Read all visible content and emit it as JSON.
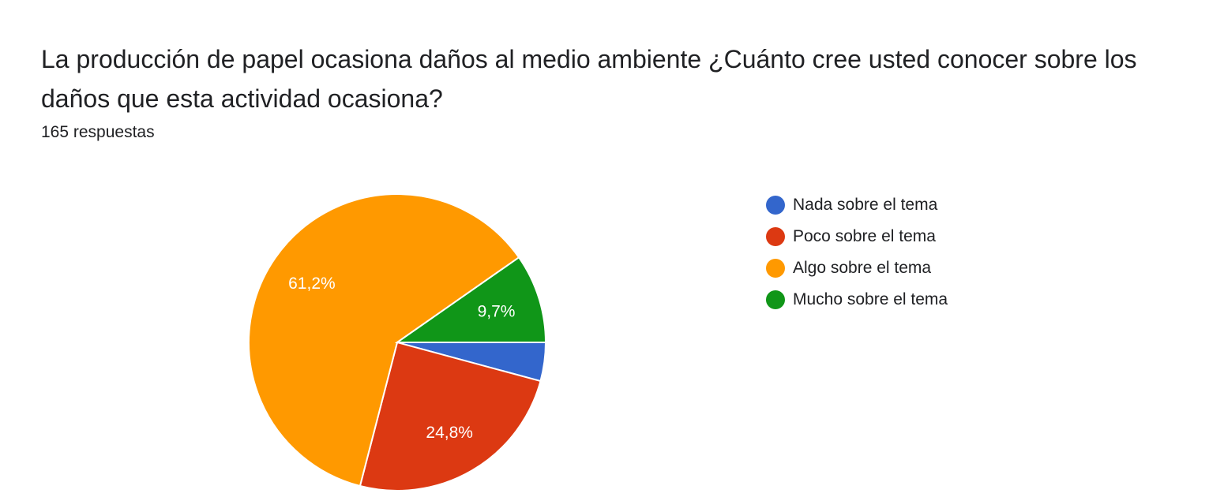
{
  "question": {
    "title": "La producción de papel ocasiona daños al medio ambiente ¿Cuánto cree usted conocer sobre los daños que esta actividad ocasiona?",
    "responses": "165 respuestas"
  },
  "chart_data": {
    "type": "pie",
    "title": "La producción de papel ocasiona daños al medio ambiente ¿Cuánto cree usted conocer sobre los daños que esta actividad ocasiona?",
    "legend_position": "right",
    "slices": [
      {
        "name": "Nada sobre el tema",
        "value": 4.2,
        "label": "",
        "color": "#3366cc"
      },
      {
        "name": "Poco sobre el tema",
        "value": 24.8,
        "label": "24,8%",
        "color": "#dc3912"
      },
      {
        "name": "Algo sobre el tema",
        "value": 61.2,
        "label": "61,2%",
        "color": "#ff9900"
      },
      {
        "name": "Mucho sobre el tema",
        "value": 9.7,
        "label": "9,7%",
        "color": "#109618"
      }
    ]
  }
}
